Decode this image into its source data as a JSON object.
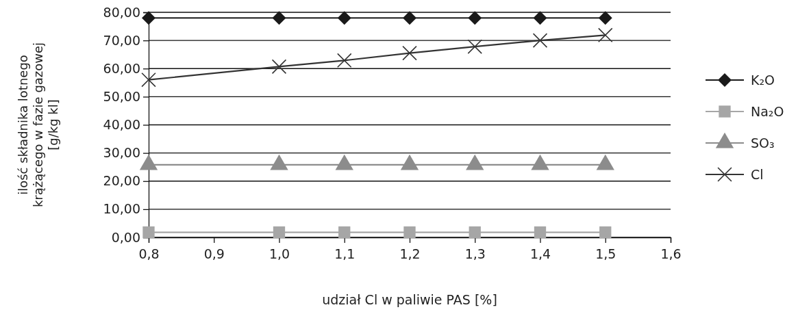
{
  "chart_data": {
    "type": "line",
    "xlabel": "udział Cl w paliwie PAS [%]",
    "ylabel": "ilość składnika lotnego krążącego w fazie gazowej [g/kg kl]",
    "x": [
      0.8,
      1.0,
      1.1,
      1.2,
      1.3,
      1.4,
      1.5
    ],
    "series": [
      {
        "name": "K₂O",
        "color": "#1a1a1a",
        "marker": "diamond",
        "values": [
          78,
          78,
          78,
          78,
          78,
          78,
          78
        ]
      },
      {
        "name": "Na₂O",
        "color": "#a6a6a6",
        "marker": "square",
        "values": [
          1.8,
          1.8,
          1.8,
          1.8,
          1.8,
          1.8,
          1.8
        ]
      },
      {
        "name": "SO₃",
        "color": "#8c8c8c",
        "marker": "triangle",
        "values": [
          25.8,
          25.8,
          25.8,
          25.8,
          25.8,
          25.8,
          25.8
        ]
      },
      {
        "name": "Cl",
        "color": "#333333",
        "marker": "cross",
        "values": [
          56,
          60.7,
          62.9,
          65.5,
          67.8,
          70,
          71.9
        ]
      }
    ],
    "xlim": [
      0.8,
      1.6
    ],
    "xticks": [
      {
        "value": 0.8,
        "label": "0,8"
      },
      {
        "value": 0.9,
        "label": "0,9"
      },
      {
        "value": 1.0,
        "label": "1,0"
      },
      {
        "value": 1.1,
        "label": "1,1"
      },
      {
        "value": 1.2,
        "label": "1,2"
      },
      {
        "value": 1.3,
        "label": "1,3"
      },
      {
        "value": 1.4,
        "label": "1,4"
      },
      {
        "value": 1.5,
        "label": "1,5"
      },
      {
        "value": 1.6,
        "label": "1,6"
      }
    ],
    "ylim": [
      0,
      80
    ],
    "yticks": [
      {
        "value": 0,
        "label": "0,00"
      },
      {
        "value": 10,
        "label": "10,00"
      },
      {
        "value": 20,
        "label": "20,00"
      },
      {
        "value": 30,
        "label": "30,00"
      },
      {
        "value": 40,
        "label": "40,00"
      },
      {
        "value": 50,
        "label": "50,00"
      },
      {
        "value": 60,
        "label": "60,00"
      },
      {
        "value": 70,
        "label": "70,00"
      },
      {
        "value": 80,
        "label": "80,00"
      }
    ],
    "grid": "y",
    "legend": "right"
  }
}
